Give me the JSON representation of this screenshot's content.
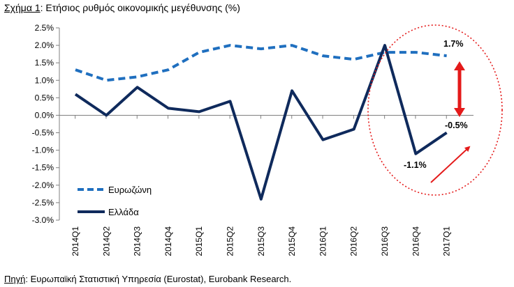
{
  "title_prefix": "Σχήμα 1",
  "title_rest": ": Ετήσιος ρυθμός οικονομικής μεγέθυνσης (%)",
  "source_prefix": "Πηγή",
  "source_rest": ": Ευρωπαϊκή Στατιστική Υπηρεσία (Eurostat), Eurobank Research.",
  "chart_data": {
    "type": "line",
    "title": "Σχήμα 1: Ετήσιος ρυθμός οικονομικής μεγέθυνσης (%)",
    "xlabel": "",
    "ylabel": "",
    "ylim": [
      -3.0,
      2.5
    ],
    "grid": false,
    "legend_placement": "bottom-left",
    "categories": [
      "2014Q1",
      "2014Q2",
      "2014Q3",
      "2014Q4",
      "2015Q1",
      "2015Q2",
      "2015Q3",
      "2015Q4",
      "2016Q1",
      "2016Q2",
      "2016Q3",
      "2016Q4",
      "2017Q1"
    ],
    "yticks": [
      "2.5%",
      "2.0%",
      "1.5%",
      "1.0%",
      "0.5%",
      "0.0%",
      "-0.5%",
      "-1.0%",
      "-1.5%",
      "-2.0%",
      "-2.5%",
      "-3.0%"
    ],
    "series": [
      {
        "name": "Ευρωζώνη",
        "color": "#1f6fbf",
        "style": "dashed",
        "values": [
          1.3,
          1.0,
          1.1,
          1.3,
          1.8,
          2.0,
          1.9,
          2.0,
          1.7,
          1.6,
          1.8,
          1.8,
          1.7
        ]
      },
      {
        "name": "Ελλάδα",
        "color": "#0f2a5c",
        "style": "solid",
        "values": [
          0.6,
          0.0,
          0.8,
          0.2,
          0.1,
          0.4,
          -2.4,
          0.7,
          -0.7,
          -0.4,
          2.0,
          -1.1,
          -0.5
        ]
      }
    ],
    "annotations": [
      "1.7%",
      "-0.5%",
      "-1.1%"
    ]
  }
}
